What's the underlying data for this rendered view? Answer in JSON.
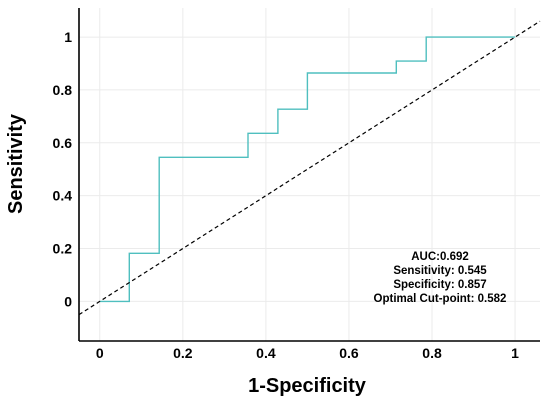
{
  "chart_data": {
    "type": "line",
    "xlabel": "1-Specificity",
    "ylabel": "Sensitivity",
    "xlim": [
      -0.05,
      1.06
    ],
    "ylim": [
      -0.15,
      1.11
    ],
    "x_ticks": [
      0,
      0.2,
      0.4,
      0.6,
      0.8,
      1
    ],
    "y_ticks": [
      0,
      0.2,
      0.4,
      0.6,
      0.8,
      1
    ],
    "x_tick_labels": [
      "0",
      "0.2",
      "0.4",
      "0.6",
      "0.8",
      "1"
    ],
    "y_tick_labels": [
      "0",
      "0.2",
      "0.4",
      "0.6",
      "0.8",
      "1"
    ],
    "grid": true,
    "series": [
      {
        "style": "step",
        "color": "#4fbfbf",
        "x": [
          0,
          0.071,
          0.071,
          0.143,
          0.143,
          0.357,
          0.357,
          0.429,
          0.429,
          0.5,
          0.5,
          0.714,
          0.714,
          0.786,
          0.786,
          1.0
        ],
        "y": [
          0,
          0,
          0.182,
          0.182,
          0.545,
          0.545,
          0.636,
          0.636,
          0.727,
          0.727,
          0.864,
          0.864,
          0.909,
          0.909,
          1.0,
          1.0
        ]
      },
      {
        "style": "dashed",
        "color": "#000000",
        "x": [
          -0.05,
          1.06
        ],
        "y": [
          -0.05,
          1.06
        ]
      }
    ],
    "annotations": [
      "AUC:0.692",
      "Sensitivity: 0.545",
      "Specificity: 0.857",
      "Optimal Cut-point: 0.582"
    ]
  }
}
